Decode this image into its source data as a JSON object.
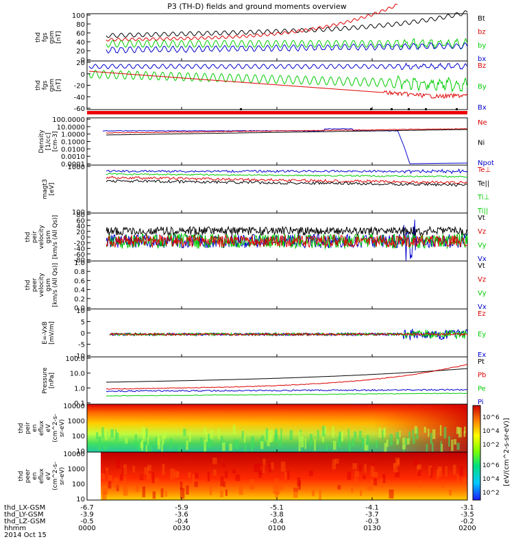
{
  "chart_data": {
    "type": "line",
    "title": "P3 (TH-D) fields and ground moments overview",
    "x_ticks": [
      "0000",
      "0030",
      "0100",
      "0130",
      "0200"
    ],
    "ephemeris": [
      {
        "label": "thd_LX-GSM",
        "values": [
          "-6.7",
          "-5.9",
          "-5.1",
          "-4.1",
          "-3.1"
        ]
      },
      {
        "label": "thd_LY-GSM",
        "values": [
          "-3.9",
          "-3.6",
          "-3.8",
          "-3.7",
          "-3.5"
        ]
      },
      {
        "label": "thd_LZ-GSM",
        "values": [
          "-0.5",
          "-0.4",
          "-0.4",
          "-0.3",
          "-0.2"
        ]
      },
      {
        "label": "hhmm",
        "values": [
          "0000",
          "0030",
          "0100",
          "0130",
          "0200"
        ]
      }
    ],
    "date_label": "2014 Oct 15",
    "colorbar_label": "[eV/(cm^2-s-sr-eV)]",
    "colorbar_ticks": [
      "10^6",
      "10^4",
      "10^2"
    ],
    "panels": [
      {
        "id": "fgs-gsm-mag",
        "ylabel": [
          "thd",
          "fgs",
          "gsm",
          "[nT]"
        ],
        "ticks": [
          "100",
          "80",
          "60",
          "40",
          "20",
          "0"
        ],
        "legend": [
          {
            "name": "Bt",
            "color": "#000000"
          },
          {
            "name": "bz",
            "color": "#dd0000"
          },
          {
            "name": "by",
            "color": "#00cc00"
          },
          {
            "name": "bx",
            "color": "#0000cc"
          }
        ]
      },
      {
        "id": "fgs-gsm-comp",
        "ylabel": [
          "thd",
          "fgs",
          "gsm",
          "[nT]"
        ],
        "ticks": [
          "20",
          "0",
          "-20",
          "-40",
          "-60"
        ],
        "legend": [
          {
            "name": "Bz",
            "color": "#dd0000"
          },
          {
            "name": "By",
            "color": "#00cc00"
          },
          {
            "name": "Bx",
            "color": "#0000cc"
          }
        ]
      },
      {
        "id": "density",
        "ylabel": [
          "Density",
          "[1/cc]",
          "[cm-3]"
        ],
        "ticks": [
          "100.0000",
          "10.0000",
          "1.0000",
          "0.1000",
          "0.0100",
          "0.0010",
          "0.0001"
        ],
        "legend": [
          {
            "name": "Ne",
            "color": "#dd0000"
          },
          {
            "name": "Ni",
            "color": "#000000"
          },
          {
            "name": "Npot",
            "color": "#0000cc"
          }
        ]
      },
      {
        "id": "temperature",
        "ylabel": [
          "magt3",
          "[eV]"
        ],
        "ticks": [
          "1000",
          "100"
        ],
        "legend": [
          {
            "name": "Te⊥",
            "color": "#dd0000"
          },
          {
            "name": "Te||",
            "color": "#000000"
          },
          {
            "name": "Ti⊥",
            "color": "#00cc00"
          },
          {
            "name": "Ti||",
            "color": "#00cc00"
          }
        ]
      },
      {
        "id": "peir-velocity",
        "ylabel": [
          "thd",
          "peir",
          "velocity",
          "gsm",
          "[km/s (All Qs)]"
        ],
        "ticks": [
          "80",
          "60",
          "40",
          "20",
          "0",
          "-20",
          "-40",
          "-60",
          "-80"
        ],
        "legend": [
          {
            "name": "Vt",
            "color": "#000000"
          },
          {
            "name": "Vz",
            "color": "#dd0000"
          },
          {
            "name": "Vy",
            "color": "#00cc00"
          },
          {
            "name": "Vx",
            "color": "#0000cc"
          }
        ]
      },
      {
        "id": "peer-velocity",
        "ylabel": [
          "thd",
          "peer",
          "velocity",
          "gsm",
          "[km/s (All Qs)]"
        ],
        "ticks": [
          "1.0",
          "0.8",
          "0.6",
          "0.4",
          "0.2",
          "0.0"
        ],
        "legend": [
          {
            "name": "Vt",
            "color": "#000000"
          },
          {
            "name": "Vz",
            "color": "#dd0000"
          },
          {
            "name": "Vy",
            "color": "#00cc00"
          },
          {
            "name": "Vx",
            "color": "#0000cc"
          }
        ]
      },
      {
        "id": "efield",
        "ylabel": [
          "E=-VxB",
          "[mV/m]"
        ],
        "ticks": [
          "10",
          "5",
          "0",
          "-5",
          "-10"
        ],
        "legend": [
          {
            "name": "Ez",
            "color": "#dd0000"
          },
          {
            "name": "Ey",
            "color": "#00cc00"
          },
          {
            "name": "Ex",
            "color": "#0000cc"
          }
        ]
      },
      {
        "id": "pressure",
        "ylabel": [
          "Pressure",
          "[nPa]"
        ],
        "ticks": [
          "100.0",
          "10.0",
          "1.0",
          "0.1"
        ],
        "legend": [
          {
            "name": "Pt",
            "color": "#000000"
          },
          {
            "name": "Pb",
            "color": "#dd0000"
          },
          {
            "name": "Pe",
            "color": "#00cc00"
          },
          {
            "name": "Pi",
            "color": "#0000cc"
          }
        ]
      },
      {
        "id": "peir-spectrogram",
        "ylabel": [
          "thd",
          "peir",
          "en",
          "eflux",
          "eV",
          "(cm^2-s-",
          "sr-eV)"
        ],
        "ticks": [
          "10000",
          "1000",
          "100",
          "10"
        ]
      },
      {
        "id": "peer-spectrogram",
        "ylabel": [
          "thd",
          "peer",
          "en",
          "eflux",
          "eV",
          "(cm^2-s-",
          "sr-eV)"
        ],
        "ticks": [
          "10000",
          "1000",
          "100",
          "10"
        ]
      }
    ]
  }
}
